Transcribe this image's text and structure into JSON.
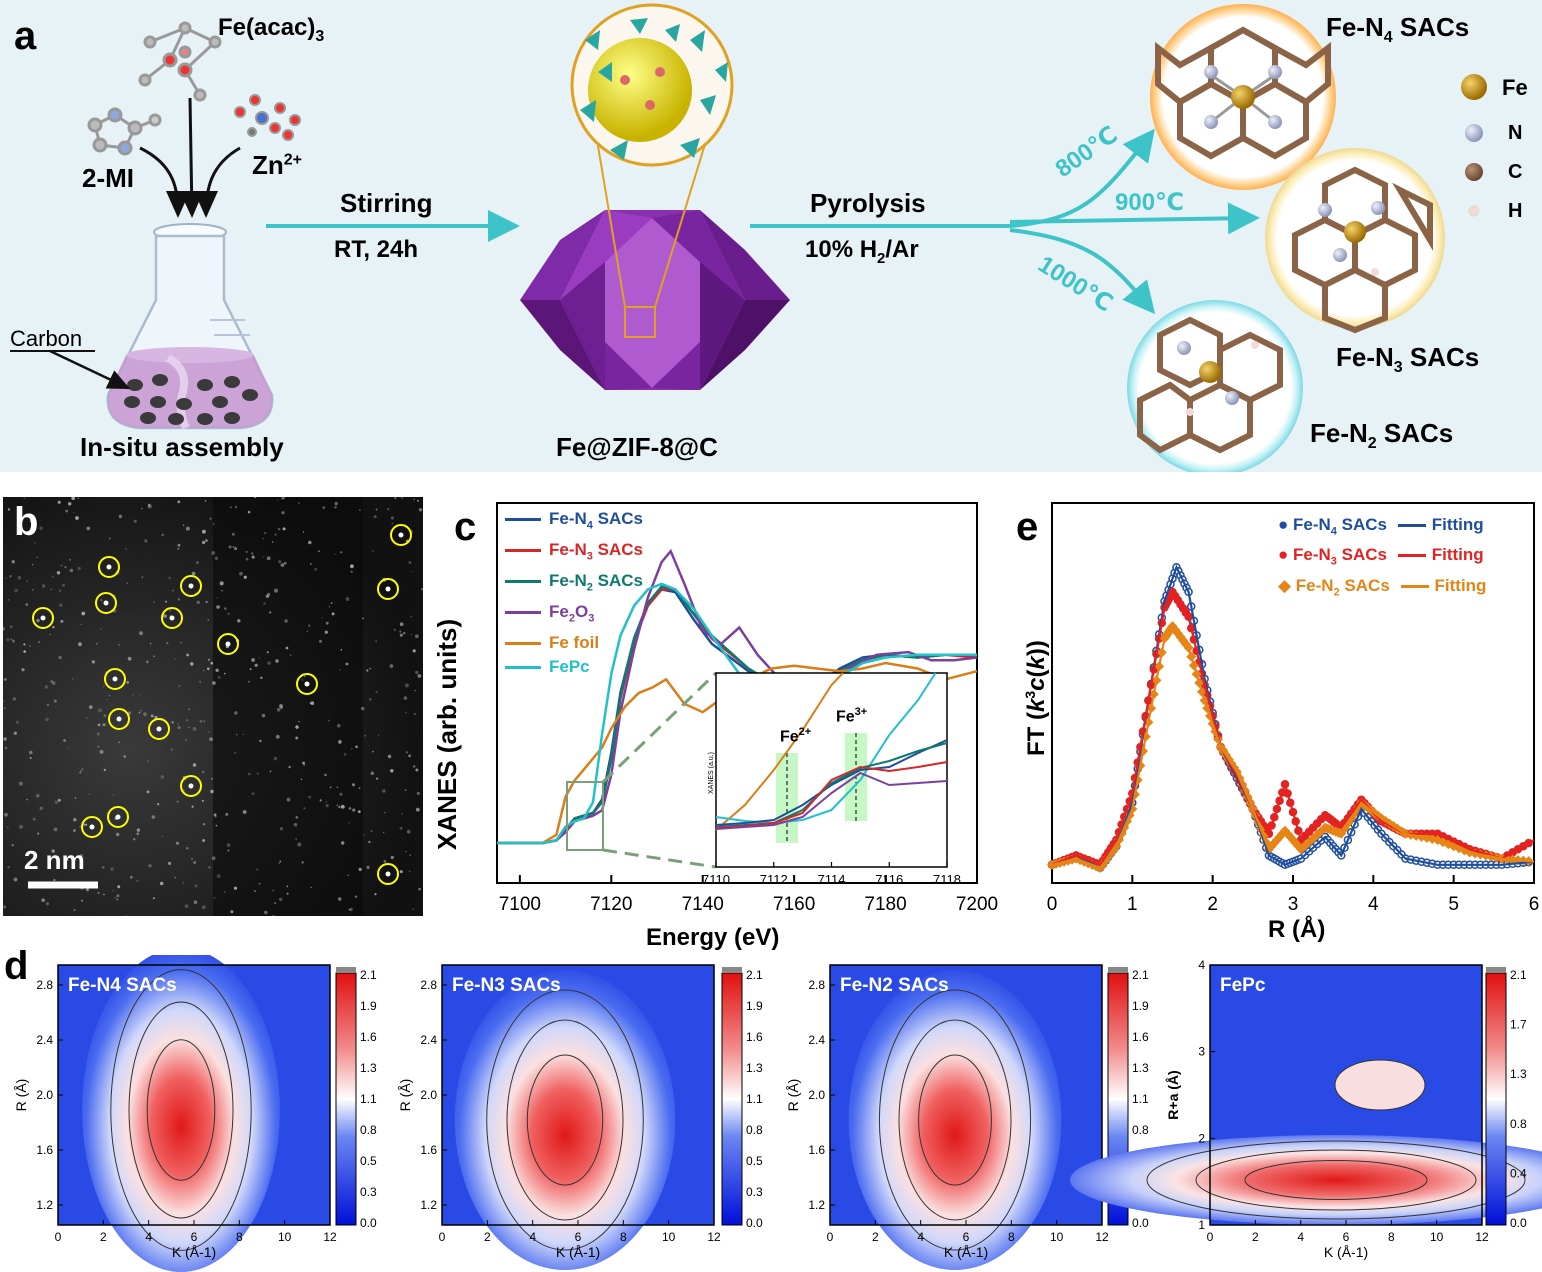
{
  "panel_a": {
    "letter": "a",
    "reagents": {
      "fe_source": "Fe(acac)3",
      "linker": "2-MI",
      "metal": "Zn2+"
    },
    "flask_label": "Carbon",
    "step1_caption": "In-situ assembly",
    "arrow1_top": "Stirring",
    "arrow1_bottom": "RT, 24h",
    "intermediate": "Fe@ZIF-8@C",
    "arrow2_top": "Pyrolysis",
    "arrow2_bottom": "10% H2/Ar",
    "temperatures": [
      "800℃",
      "900℃",
      "1000℃"
    ],
    "products": [
      "Fe-N4 SACs",
      "Fe-N3 SACs",
      "Fe-N2 SACs"
    ],
    "legend": [
      {
        "label": "Fe",
        "color": "#b8860b"
      },
      {
        "label": "N",
        "color": "#b7bfd8"
      },
      {
        "label": "C",
        "color": "#8b6347"
      },
      {
        "label": "H",
        "color": "#f2dada"
      }
    ],
    "colors": {
      "arrow": "#3ec4c8",
      "zif": "#8a2fb0"
    }
  },
  "panel_b": {
    "letter": "b",
    "scale_bar": "2 nm",
    "circle_color": "#ffff00"
  },
  "panel_c": {
    "letter": "c",
    "inset_labels": [
      "Fe2+",
      "Fe3+"
    ],
    "inset_ylabel": "XANES (a.u.)"
  },
  "panel_d": {
    "letter": "d",
    "maps": [
      {
        "title": "Fe-N4 SACs",
        "ylabel": "R (Å)",
        "xlabel": "K (Å-1)"
      },
      {
        "title": "Fe-N3 SACs",
        "ylabel": "R (Å)",
        "xlabel": "K (Å-1)"
      },
      {
        "title": "Fe-N2 SACs",
        "ylabel": "R (Å)",
        "xlabel": "K (Å-1)"
      },
      {
        "title": "FePc",
        "ylabel": "R+a (Å)",
        "xlabel": "K (Å-1)"
      }
    ],
    "colorbar_ticks_a": [
      "2.1",
      "1.9",
      "1.6",
      "1.3",
      "1.1",
      "0.8",
      "0.5",
      "0.3",
      "0.0"
    ],
    "colorbar_ticks_b": [
      "2.1",
      "1.7",
      "1.3",
      "0.8",
      "0.4",
      "0.0"
    ],
    "r_ticks_a": [
      "2.8",
      "2.4",
      "2.0",
      "1.6",
      "1.2"
    ],
    "r_ticks_b": [
      "4",
      "3",
      "2",
      "1"
    ],
    "k_ticks": [
      "0",
      "2",
      "4",
      "6",
      "8",
      "10",
      "12"
    ]
  },
  "panel_e": {
    "letter": "e"
  },
  "chart_data": [
    {
      "type": "line",
      "panel": "c",
      "xlabel": "Energy (eV)",
      "ylabel": "XANES (arb. units)",
      "xlim": [
        7095,
        7200
      ],
      "xticks": [
        7100,
        7120,
        7140,
        7160,
        7180,
        7200
      ],
      "legend_position": "top-left",
      "series": [
        {
          "name": "Fe-N4 SACs",
          "color": "#1f4e9c",
          "x": [
            7095,
            7105,
            7108,
            7110,
            7112,
            7114,
            7116,
            7118,
            7120,
            7122,
            7125,
            7128,
            7131,
            7134,
            7138,
            7142,
            7150,
            7158,
            7165,
            7170,
            7175,
            7180,
            7187,
            7193,
            7200
          ],
          "y": [
            0.0,
            0.0,
            0.01,
            0.05,
            0.09,
            0.1,
            0.11,
            0.16,
            0.33,
            0.55,
            0.75,
            0.88,
            0.93,
            0.92,
            0.82,
            0.73,
            0.63,
            0.55,
            0.58,
            0.64,
            0.68,
            0.69,
            0.68,
            0.69,
            0.69
          ]
        },
        {
          "name": "Fe-N3 SACs",
          "color": "#d62728",
          "x": [
            7095,
            7105,
            7108,
            7110,
            7112,
            7114,
            7116,
            7118,
            7120,
            7122,
            7125,
            7128,
            7131,
            7134,
            7138,
            7142,
            7150,
            7158,
            7165,
            7170,
            7175,
            7180,
            7187,
            7193,
            7200
          ],
          "y": [
            0.0,
            0.0,
            0.01,
            0.05,
            0.09,
            0.1,
            0.11,
            0.15,
            0.31,
            0.53,
            0.74,
            0.87,
            0.93,
            0.93,
            0.84,
            0.75,
            0.64,
            0.55,
            0.57,
            0.63,
            0.67,
            0.69,
            0.68,
            0.69,
            0.68
          ]
        },
        {
          "name": "Fe-N2 SACs",
          "color": "#0e7a6e",
          "x": [
            7095,
            7105,
            7108,
            7110,
            7112,
            7114,
            7116,
            7118,
            7120,
            7122,
            7125,
            7128,
            7131,
            7134,
            7138,
            7142,
            7150,
            7158,
            7165,
            7170,
            7175,
            7180,
            7187,
            7193,
            7200
          ],
          "y": [
            0.0,
            0.0,
            0.01,
            0.05,
            0.09,
            0.1,
            0.11,
            0.15,
            0.31,
            0.54,
            0.75,
            0.88,
            0.94,
            0.93,
            0.84,
            0.76,
            0.64,
            0.56,
            0.58,
            0.63,
            0.67,
            0.69,
            0.68,
            0.69,
            0.69
          ]
        },
        {
          "name": "Fe2O3",
          "color": "#7b3fa0",
          "x": [
            7095,
            7105,
            7108,
            7110,
            7112,
            7114,
            7116,
            7118,
            7120,
            7122,
            7125,
            7128,
            7131,
            7133,
            7136,
            7140,
            7144,
            7148,
            7152,
            7158,
            7165,
            7172,
            7178,
            7185,
            7190,
            7195,
            7200
          ],
          "y": [
            0.0,
            0.0,
            0.01,
            0.04,
            0.08,
            0.09,
            0.1,
            0.12,
            0.25,
            0.48,
            0.71,
            0.9,
            1.03,
            1.07,
            0.95,
            0.78,
            0.73,
            0.79,
            0.69,
            0.58,
            0.57,
            0.64,
            0.69,
            0.7,
            0.67,
            0.67,
            0.68
          ]
        },
        {
          "name": "Fe foil",
          "color": "#d97e18",
          "x": [
            7095,
            7105,
            7108,
            7110,
            7112,
            7114,
            7116,
            7118,
            7120,
            7123,
            7126,
            7129,
            7132,
            7136,
            7140,
            7145,
            7150,
            7155,
            7160,
            7165,
            7170,
            7175,
            7180,
            7187,
            7193,
            7200
          ],
          "y": [
            0.0,
            0.0,
            0.03,
            0.17,
            0.23,
            0.27,
            0.31,
            0.35,
            0.42,
            0.5,
            0.55,
            0.57,
            0.6,
            0.51,
            0.48,
            0.54,
            0.6,
            0.64,
            0.65,
            0.64,
            0.63,
            0.64,
            0.66,
            0.64,
            0.6,
            0.63
          ]
        },
        {
          "name": "FePc",
          "color": "#22c0c8",
          "x": [
            7095,
            7105,
            7108,
            7110,
            7112,
            7114,
            7116,
            7118,
            7120,
            7122,
            7125,
            7128,
            7131,
            7134,
            7138,
            7142,
            7148,
            7155,
            7160,
            7165,
            7170,
            7175,
            7180,
            7187,
            7193,
            7200
          ],
          "y": [
            0.0,
            0.0,
            0.01,
            0.06,
            0.08,
            0.09,
            0.15,
            0.4,
            0.62,
            0.76,
            0.87,
            0.93,
            0.95,
            0.93,
            0.86,
            0.76,
            0.62,
            0.54,
            0.53,
            0.56,
            0.61,
            0.66,
            0.68,
            0.69,
            0.69,
            0.69
          ]
        }
      ]
    },
    {
      "type": "line",
      "panel": "c-inset",
      "xlim": [
        7110,
        7118
      ],
      "xticks": [
        7110,
        7112,
        7114,
        7116,
        7118
      ],
      "ylabel": "XANES (a.u.)",
      "fe2_position": 7112.5,
      "fe3_position": 7115.0
    },
    {
      "type": "line",
      "panel": "e",
      "xlabel": "R (Å)",
      "ylabel": "FT (k3c(k))",
      "xlim": [
        0,
        6
      ],
      "xticks": [
        0,
        1,
        2,
        3,
        4,
        5,
        6
      ],
      "legend_position": "top-right",
      "series": [
        {
          "name": "Fe-N4 SACs",
          "fit_name": "Fitting",
          "color": "#1f4e9c",
          "marker": "circle-open",
          "x": [
            0,
            0.3,
            0.6,
            0.8,
            1.0,
            1.2,
            1.4,
            1.55,
            1.7,
            1.9,
            2.1,
            2.3,
            2.5,
            2.7,
            2.9,
            3.1,
            3.4,
            3.6,
            3.85,
            4.1,
            4.4,
            4.8,
            5.2,
            5.6,
            6.0
          ],
          "y": [
            0.02,
            0.05,
            0.01,
            0.08,
            0.22,
            0.55,
            0.87,
            0.98,
            0.9,
            0.62,
            0.4,
            0.3,
            0.2,
            0.05,
            0.02,
            0.04,
            0.11,
            0.05,
            0.2,
            0.12,
            0.04,
            0.02,
            0.02,
            0.02,
            0.03
          ]
        },
        {
          "name": "Fe-N3 SACs",
          "fit_name": "Fitting",
          "color": "#e32222",
          "marker": "circle-filled",
          "x": [
            0,
            0.3,
            0.6,
            0.8,
            1.0,
            1.2,
            1.4,
            1.5,
            1.7,
            1.9,
            2.1,
            2.3,
            2.5,
            2.7,
            2.9,
            3.1,
            3.4,
            3.6,
            3.85,
            4.1,
            4.4,
            4.8,
            5.2,
            5.6,
            6.0
          ],
          "y": [
            0.02,
            0.05,
            0.02,
            0.1,
            0.25,
            0.55,
            0.85,
            0.9,
            0.82,
            0.6,
            0.4,
            0.31,
            0.2,
            0.12,
            0.28,
            0.1,
            0.18,
            0.14,
            0.23,
            0.16,
            0.12,
            0.12,
            0.07,
            0.04,
            0.1
          ]
        },
        {
          "name": "Fe-N2 SACs",
          "fit_name": "Fitting",
          "color": "#e68416",
          "marker": "diamond-filled",
          "x": [
            0,
            0.3,
            0.6,
            0.8,
            1.0,
            1.2,
            1.4,
            1.5,
            1.7,
            1.9,
            2.1,
            2.3,
            2.5,
            2.7,
            2.9,
            3.1,
            3.4,
            3.6,
            3.85,
            4.1,
            4.4,
            4.8,
            5.2,
            5.6,
            6.0
          ],
          "y": [
            0.02,
            0.04,
            0.01,
            0.08,
            0.2,
            0.48,
            0.75,
            0.79,
            0.72,
            0.55,
            0.4,
            0.32,
            0.2,
            0.07,
            0.13,
            0.07,
            0.14,
            0.12,
            0.22,
            0.17,
            0.12,
            0.1,
            0.06,
            0.04,
            0.03
          ]
        }
      ]
    }
  ]
}
